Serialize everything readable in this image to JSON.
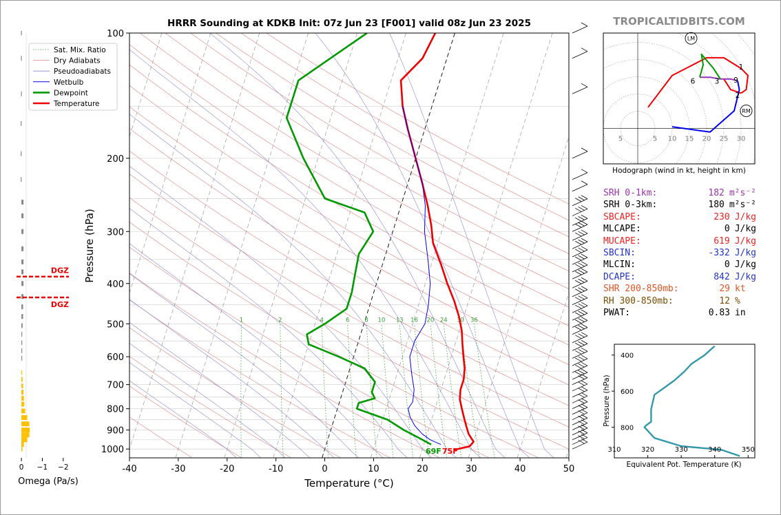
{
  "title": "HRRR Sounding at KDKB Init: 07z Jun 23 [F001] valid 08z Jun 23 2025",
  "brand": "TROPICALTIDBITS.COM",
  "chart_data": [
    {
      "type": "line",
      "chart": "skew-t",
      "title": "HRRR Sounding at KDKB Init: 07z Jun 23 [F001] valid 08z Jun 23 2025",
      "xlabel": "Temperature (°C)",
      "ylabel": "Pressure (hPa)",
      "xlim": [
        -40,
        50
      ],
      "ylim": [
        1050,
        100
      ],
      "yscale": "log",
      "xticks": [
        -40,
        -30,
        -20,
        -10,
        0,
        10,
        20,
        30,
        40,
        50
      ],
      "yticks": [
        100,
        200,
        300,
        400,
        500,
        600,
        700,
        800,
        900,
        1000
      ],
      "legend": {
        "placement": "top-left",
        "entries": [
          {
            "name": "Sat. Mix. Ratio",
            "color": "#33a033",
            "style": "dotted"
          },
          {
            "name": "Dry Adiabats",
            "color": "#e08080",
            "style": "solid"
          },
          {
            "name": "Pseudoadiabats",
            "color": "#8888cc",
            "style": "solid"
          },
          {
            "name": "Wetbulb",
            "color": "#0000ee",
            "style": "solid"
          },
          {
            "name": "Dewpoint",
            "color": "#009900",
            "style": "solid"
          },
          {
            "name": "Temperature",
            "color": "#ee0000",
            "style": "solid"
          }
        ]
      },
      "series": [
        {
          "name": "Temperature",
          "color": "#ee0000",
          "points": [
            [
              1005,
              26.5
            ],
            [
              985,
              29.5
            ],
            [
              960,
              30
            ],
            [
              920,
              28.5
            ],
            [
              880,
              27.5
            ],
            [
              840,
              26.5
            ],
            [
              800,
              25.5
            ],
            [
              760,
              24.5
            ],
            [
              720,
              24
            ],
            [
              680,
              24
            ],
            [
              640,
              23.5
            ],
            [
              600,
              22.5
            ],
            [
              560,
              21.5
            ],
            [
              520,
              20.5
            ],
            [
              480,
              19
            ],
            [
              440,
              17
            ],
            [
              400,
              14.5
            ],
            [
              360,
              12
            ],
            [
              320,
              9
            ],
            [
              290,
              7.5
            ],
            [
              260,
              5.5
            ],
            [
              230,
              3
            ],
            [
              200,
              0
            ],
            [
              170,
              -3.5
            ],
            [
              150,
              -6
            ],
            [
              130,
              -8
            ],
            [
              115,
              -5
            ],
            [
              100,
              -4
            ]
          ]
        },
        {
          "name": "Dewpoint",
          "color": "#009900",
          "points": [
            [
              975,
              21.5
            ],
            [
              945,
              19
            ],
            [
              900,
              15
            ],
            [
              850,
              11
            ],
            [
              800,
              4
            ],
            [
              775,
              4
            ],
            [
              755,
              7
            ],
            [
              730,
              6
            ],
            [
              690,
              6
            ],
            [
              640,
              3
            ],
            [
              600,
              -3
            ],
            [
              560,
              -10
            ],
            [
              530,
              -11
            ],
            [
              500,
              -8
            ],
            [
              460,
              -4.5
            ],
            [
              420,
              -4.5
            ],
            [
              380,
              -5
            ],
            [
              340,
              -5.5
            ],
            [
              300,
              -4
            ],
            [
              270,
              -7
            ],
            [
              250,
              -16
            ],
            [
              200,
              -23
            ],
            [
              160,
              -29
            ],
            [
              130,
              -29
            ],
            [
              100,
              -18
            ]
          ]
        },
        {
          "name": "Wetbulb",
          "color": "#0000ee",
          "points": [
            [
              975,
              23.5
            ],
            [
              950,
              21
            ],
            [
              920,
              19
            ],
            [
              880,
              17
            ],
            [
              840,
              15.5
            ],
            [
              800,
              14.5
            ],
            [
              770,
              15
            ],
            [
              720,
              14.5
            ],
            [
              660,
              13
            ],
            [
              600,
              11.5
            ],
            [
              550,
              11.5
            ],
            [
              500,
              12.5
            ],
            [
              450,
              12
            ],
            [
              400,
              11
            ],
            [
              350,
              9
            ],
            [
              300,
              6.5
            ],
            [
              260,
              5
            ],
            [
              230,
              3
            ],
            [
              200,
              0
            ],
            [
              170,
              -3.5
            ],
            [
              150,
              -6
            ]
          ]
        }
      ],
      "annotations": [
        "69F",
        "75F"
      ],
      "mixing_ratio_labels": [
        "1",
        "2",
        "4",
        "6",
        "8",
        "10",
        "13",
        "16",
        "20",
        "24",
        "30",
        "36"
      ],
      "mixing_ratio_values": [
        1,
        2,
        4,
        6,
        8,
        10,
        13,
        16,
        20,
        24,
        30,
        36
      ]
    },
    {
      "type": "bar",
      "chart": "omega",
      "xlabel": "Omega (Pa/s)",
      "xticks": [
        "0",
        "−1",
        "−2"
      ],
      "xlim": [
        0.2,
        -2.6
      ],
      "annotations": [
        "DGZ",
        "DGZ"
      ],
      "dgz_pressures": [
        385,
        432
      ],
      "bars": [
        {
          "p": 100,
          "value": 0.02,
          "color": "#888888"
        },
        {
          "p": 115,
          "value": 0.02,
          "color": "#888888"
        },
        {
          "p": 140,
          "value": 0.02,
          "color": "#888888"
        },
        {
          "p": 165,
          "value": 0.03,
          "color": "#888888"
        },
        {
          "p": 195,
          "value": 0.03,
          "color": "#888888"
        },
        {
          "p": 225,
          "value": 0.03,
          "color": "#888888"
        },
        {
          "p": 255,
          "value": -0.1,
          "color": "#888888"
        },
        {
          "p": 275,
          "value": -0.1,
          "color": "#888888"
        },
        {
          "p": 300,
          "value": -0.1,
          "color": "#888888"
        },
        {
          "p": 330,
          "value": -0.1,
          "color": "#888888"
        },
        {
          "p": 355,
          "value": -0.1,
          "color": "#888888"
        },
        {
          "p": 375,
          "value": -0.1,
          "color": "#888888"
        },
        {
          "p": 400,
          "value": -0.1,
          "color": "#888888"
        },
        {
          "p": 430,
          "value": -0.1,
          "color": "#888888"
        },
        {
          "p": 455,
          "value": -0.08,
          "color": "#888888"
        },
        {
          "p": 480,
          "value": -0.08,
          "color": "#888888"
        },
        {
          "p": 505,
          "value": -0.06,
          "color": "#888888"
        },
        {
          "p": 530,
          "value": -0.04,
          "color": "#888888"
        },
        {
          "p": 555,
          "value": -0.03,
          "color": "#888888"
        },
        {
          "p": 580,
          "value": -0.02,
          "color": "#888888"
        },
        {
          "p": 605,
          "value": -0.02,
          "color": "#888888"
        },
        {
          "p": 655,
          "value": -0.03,
          "color": "#ffc000"
        },
        {
          "p": 680,
          "value": -0.06,
          "color": "#ffc000"
        },
        {
          "p": 705,
          "value": -0.08,
          "color": "#ffc000"
        },
        {
          "p": 730,
          "value": -0.1,
          "color": "#ffc000"
        },
        {
          "p": 755,
          "value": -0.12,
          "color": "#ffc000"
        },
        {
          "p": 780,
          "value": -0.14,
          "color": "#ffc000"
        },
        {
          "p": 810,
          "value": -0.18,
          "color": "#ffc000"
        },
        {
          "p": 840,
          "value": -0.28,
          "color": "#ffc000"
        },
        {
          "p": 870,
          "value": -0.38,
          "color": "#ffc000"
        },
        {
          "p": 900,
          "value": -0.4,
          "color": "#ffc000"
        },
        {
          "p": 925,
          "value": -0.38,
          "color": "#ffc000"
        },
        {
          "p": 950,
          "value": -0.28,
          "color": "#ffc000"
        },
        {
          "p": 975,
          "value": -0.12,
          "color": "#ffc000"
        },
        {
          "p": 1000,
          "value": -0.05,
          "color": "#ffc000"
        }
      ]
    },
    {
      "type": "line",
      "chart": "hodograph",
      "xlabel": "Hodograph (wind in kt, height in km)",
      "xlim": [
        -10,
        34
      ],
      "ylim": [
        -10,
        27
      ],
      "ring_labels": [
        "5",
        "5",
        "10",
        "15",
        "20",
        "25",
        "30"
      ],
      "segments": [
        {
          "color": "#ee0000",
          "points": [
            [
              3,
              6
            ],
            [
              10,
              15
            ],
            [
              20,
              20
            ],
            [
              25,
              20
            ],
            [
              30,
              17
            ],
            [
              32,
              15
            ],
            [
              31.5,
              11
            ],
            [
              30,
              10
            ]
          ]
        },
        {
          "color": "#ee0000",
          "points": [
            [
              30,
              10
            ],
            [
              27,
              11
            ],
            [
              25,
              14
            ]
          ]
        },
        {
          "color": "#9933bb",
          "points": [
            [
              18,
              14.5
            ],
            [
              21,
              14.5
            ],
            [
              24,
              14
            ],
            [
              27,
              14
            ],
            [
              29,
              13.5
            ]
          ]
        },
        {
          "color": "#009900",
          "points": [
            [
              18,
              14.5
            ],
            [
              19,
              18
            ],
            [
              18.5,
              21
            ],
            [
              22,
              17
            ],
            [
              24,
              14
            ]
          ]
        },
        {
          "color": "#0000ee",
          "points": [
            [
              29,
              13.5
            ],
            [
              29.5,
              11
            ],
            [
              28,
              5
            ],
            [
              21,
              -1
            ],
            [
              10,
              0.5
            ]
          ]
        }
      ],
      "labels": [
        {
          "text": "1",
          "x": 30,
          "y": 17.5
        },
        {
          "text": "2",
          "x": 29,
          "y": 9.5
        },
        {
          "text": "3",
          "x": 23,
          "y": 13.5
        },
        {
          "text": "9",
          "x": 28.5,
          "y": 13.8
        },
        {
          "text": "6",
          "x": 16,
          "y": 13.5
        }
      ],
      "markers": [
        {
          "text": "LM",
          "x": 15.5,
          "y": 25.5
        },
        {
          "text": "RM",
          "x": 31.5,
          "y": 5
        }
      ]
    },
    {
      "type": "line",
      "chart": "theta-e",
      "xlabel": "Equivalent Pot. Temperature (K)",
      "ylabel": "Pressure (hPa)",
      "xlim": [
        310,
        352
      ],
      "ylim": [
        970,
        340
      ],
      "xticks": [
        310,
        320,
        330,
        340,
        350
      ],
      "yticks": [
        400,
        600,
        800
      ],
      "series": [
        {
          "name": "theta-e",
          "color": "#3399aa",
          "points": [
            [
              347.5,
              960
            ],
            [
              342,
              925
            ],
            [
              330,
              905
            ],
            [
              322,
              860
            ],
            [
              319,
              800
            ],
            [
              319.5,
              790
            ],
            [
              321,
              770
            ],
            [
              321,
              700
            ],
            [
              322,
              620
            ],
            [
              325,
              580
            ],
            [
              328,
              540
            ],
            [
              331,
              490
            ],
            [
              333,
              450
            ],
            [
              337,
              400
            ],
            [
              340,
              350
            ]
          ]
        }
      ]
    }
  ],
  "params": [
    {
      "label": "SRH 0-1km:",
      "value": "182",
      "unit": "m²s⁻²",
      "color": "#9933aa"
    },
    {
      "label": "SRH 0-3km:",
      "value": "180",
      "unit": "m²s⁻²",
      "color": "#000000"
    },
    {
      "label": "SBCAPE:",
      "value": "230",
      "unit": "J/kg",
      "color": "#ee2222"
    },
    {
      "label": "MLCAPE:",
      "value": "0",
      "unit": "J/kg",
      "color": "#000000"
    },
    {
      "label": "MUCAPE:",
      "value": "619",
      "unit": "J/kg",
      "color": "#ee2222"
    },
    {
      "label": "SBCIN:",
      "value": "-332",
      "unit": "J/kg",
      "color": "#2233cc"
    },
    {
      "label": "MLCIN:",
      "value": "0",
      "unit": "J/kg",
      "color": "#000000"
    },
    {
      "label": "DCAPE:",
      "value": "842",
      "unit": "J/kg",
      "color": "#2233cc"
    },
    {
      "label": "SHR 200-850mb:",
      "value": "29",
      "unit": "kt",
      "color": "#dd5522"
    },
    {
      "label": "RH 300-850mb:",
      "value": "12",
      "unit": "%",
      "color": "#7a4d00"
    },
    {
      "label": "PWAT:",
      "value": "0.83",
      "unit": "in",
      "color": "#000000"
    }
  ],
  "colors": {
    "temperature": "#ee0000",
    "dewpoint": "#009900",
    "wetbulb": "#0000ee",
    "dry_adiabat": "#e08080",
    "pseudoadiabat": "#8888cc",
    "mixing_ratio": "#33a033",
    "dgz": "#ee0000",
    "brand": "#8a8a8a"
  }
}
